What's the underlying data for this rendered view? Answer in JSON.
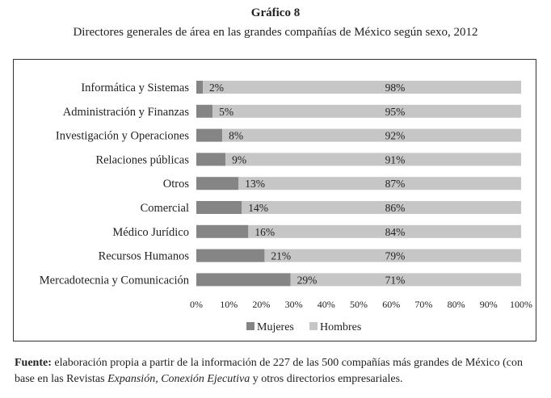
{
  "title": "Gráfico 8",
  "subtitle": "Directores generales de área en las grandes compañías de México según sexo, 2012",
  "colors": {
    "mujeres": "#858585",
    "hombres": "#c6c6c6"
  },
  "chart_data": {
    "type": "bar",
    "orientation": "horizontal",
    "stacked": true,
    "categories": [
      "Informática y Sistemas",
      "Administración y Finanzas",
      "Investigación y Operaciones",
      "Relaciones públicas",
      "Otros",
      "Comercial",
      "Médico Jurídico",
      "Recursos Humanos",
      "Mercadotecnia y Comunicación"
    ],
    "series": [
      {
        "name": "Mujeres",
        "values": [
          2,
          5,
          8,
          9,
          13,
          14,
          16,
          21,
          29
        ],
        "labels": [
          "2%",
          "5%",
          "8%",
          "9%",
          "13%",
          "14%",
          "16%",
          "21%",
          "29%"
        ]
      },
      {
        "name": "Hombres",
        "values": [
          98,
          95,
          92,
          91,
          87,
          86,
          84,
          79,
          71
        ],
        "labels": [
          "98%",
          "95%",
          "92%",
          "91%",
          "87%",
          "86%",
          "84%",
          "79%",
          "71%"
        ]
      }
    ],
    "xticks": [
      "0%",
      "10%",
      "20%",
      "30%",
      "40%",
      "50%",
      "60%",
      "70%",
      "80%",
      "90%",
      "100%"
    ],
    "xlim": [
      0,
      100
    ],
    "grid": false,
    "legend_position": "bottom"
  },
  "source": {
    "label": "Fuente:",
    "text_1": " elaboración propia a partir de la información de 227 de las 500 compañías más grandes de México (con base en las Revistas ",
    "italic": "Expansión, Conexión Ejecutiva",
    "text_2": " y otros directorios empresariales."
  }
}
